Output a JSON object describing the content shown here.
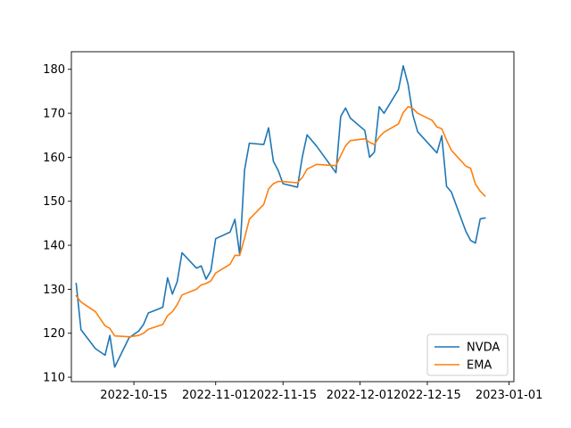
{
  "chart_data": {
    "type": "line",
    "title": "",
    "xlabel": "",
    "ylabel": "",
    "xlim": [
      "2022-10-02",
      "2023-01-02"
    ],
    "ylim": [
      109,
      184
    ],
    "xticks": [
      "2022-10-15",
      "2022-11-01",
      "2022-11-15",
      "2022-12-01",
      "2022-12-15",
      "2023-01-01"
    ],
    "yticks": [
      110,
      120,
      130,
      140,
      150,
      160,
      170,
      180
    ],
    "grid": false,
    "legend": "lower-right",
    "series": [
      {
        "name": "NVDA",
        "color": "#1f77b4",
        "points": [
          [
            "2022-10-03",
            131.3
          ],
          [
            "2022-10-04",
            120.8
          ],
          [
            "2022-10-07",
            116.5
          ],
          [
            "2022-10-09",
            115.0
          ],
          [
            "2022-10-10",
            119.5
          ],
          [
            "2022-10-11",
            112.3
          ],
          [
            "2022-10-14",
            119.0
          ],
          [
            "2022-10-16",
            120.5
          ],
          [
            "2022-10-17",
            122.0
          ],
          [
            "2022-10-18",
            124.6
          ],
          [
            "2022-10-21",
            125.9
          ],
          [
            "2022-10-22",
            132.6
          ],
          [
            "2022-10-23",
            128.9
          ],
          [
            "2022-10-24",
            131.7
          ],
          [
            "2022-10-25",
            138.3
          ],
          [
            "2022-10-28",
            134.8
          ],
          [
            "2022-10-29",
            135.3
          ],
          [
            "2022-10-30",
            132.3
          ],
          [
            "2022-10-31",
            134.2
          ],
          [
            "2022-11-01",
            141.5
          ],
          [
            "2022-11-04",
            143.0
          ],
          [
            "2022-11-05",
            145.9
          ],
          [
            "2022-11-06",
            137.8
          ],
          [
            "2022-11-07",
            157.1
          ],
          [
            "2022-11-08",
            163.2
          ],
          [
            "2022-11-11",
            162.9
          ],
          [
            "2022-11-12",
            166.7
          ],
          [
            "2022-11-13",
            159.1
          ],
          [
            "2022-11-14",
            157.0
          ],
          [
            "2022-11-15",
            154.0
          ],
          [
            "2022-11-18",
            153.2
          ],
          [
            "2022-11-19",
            160.0
          ],
          [
            "2022-11-20",
            165.1
          ],
          [
            "2022-11-22",
            162.5
          ],
          [
            "2022-11-26",
            156.5
          ],
          [
            "2022-11-27",
            169.3
          ],
          [
            "2022-11-28",
            171.2
          ],
          [
            "2022-11-29",
            168.9
          ],
          [
            "2022-12-02",
            166.1
          ],
          [
            "2022-12-03",
            160.0
          ],
          [
            "2022-12-04",
            161.2
          ],
          [
            "2022-12-05",
            171.5
          ],
          [
            "2022-12-06",
            170.0
          ],
          [
            "2022-12-09",
            175.4
          ],
          [
            "2022-12-10",
            180.8
          ],
          [
            "2022-12-11",
            176.6
          ],
          [
            "2022-12-12",
            169.6
          ],
          [
            "2022-12-13",
            165.8
          ],
          [
            "2022-12-16",
            162.2
          ],
          [
            "2022-12-17",
            161.0
          ],
          [
            "2022-12-18",
            164.9
          ],
          [
            "2022-12-19",
            153.4
          ],
          [
            "2022-12-20",
            152.1
          ],
          [
            "2022-12-23",
            143.2
          ],
          [
            "2022-12-24",
            141.1
          ],
          [
            "2022-12-25",
            140.5
          ],
          [
            "2022-12-26",
            146.0
          ],
          [
            "2022-12-27",
            146.2
          ]
        ]
      },
      {
        "name": "EMA",
        "color": "#ff7f0e",
        "points": [
          [
            "2022-10-03",
            128.5
          ],
          [
            "2022-10-04",
            127.1
          ],
          [
            "2022-10-07",
            124.9
          ],
          [
            "2022-10-09",
            121.7
          ],
          [
            "2022-10-10",
            121.1
          ],
          [
            "2022-10-11",
            119.4
          ],
          [
            "2022-10-14",
            119.2
          ],
          [
            "2022-10-16",
            119.5
          ],
          [
            "2022-10-17",
            120.0
          ],
          [
            "2022-10-18",
            120.9
          ],
          [
            "2022-10-21",
            122.0
          ],
          [
            "2022-10-22",
            124.0
          ],
          [
            "2022-10-23",
            124.9
          ],
          [
            "2022-10-24",
            126.5
          ],
          [
            "2022-10-25",
            128.7
          ],
          [
            "2022-10-28",
            130.0
          ],
          [
            "2022-10-29",
            131.0
          ],
          [
            "2022-10-30",
            131.3
          ],
          [
            "2022-10-31",
            131.9
          ],
          [
            "2022-11-01",
            133.7
          ],
          [
            "2022-11-04",
            135.7
          ],
          [
            "2022-11-05",
            137.7
          ],
          [
            "2022-11-06",
            137.7
          ],
          [
            "2022-11-07",
            141.6
          ],
          [
            "2022-11-08",
            145.9
          ],
          [
            "2022-11-11",
            149.3
          ],
          [
            "2022-11-12",
            152.8
          ],
          [
            "2022-11-13",
            154.0
          ],
          [
            "2022-11-14",
            154.5
          ],
          [
            "2022-11-15",
            154.5
          ],
          [
            "2022-11-18",
            154.2
          ],
          [
            "2022-11-19",
            155.4
          ],
          [
            "2022-11-20",
            157.3
          ],
          [
            "2022-11-22",
            158.4
          ],
          [
            "2022-11-26",
            158.1
          ],
          [
            "2022-11-27",
            160.4
          ],
          [
            "2022-11-28",
            162.6
          ],
          [
            "2022-11-29",
            163.8
          ],
          [
            "2022-12-02",
            164.2
          ],
          [
            "2022-12-03",
            163.4
          ],
          [
            "2022-12-04",
            162.9
          ],
          [
            "2022-12-05",
            164.6
          ],
          [
            "2022-12-06",
            165.7
          ],
          [
            "2022-12-09",
            167.6
          ],
          [
            "2022-12-10",
            170.2
          ],
          [
            "2022-12-11",
            171.5
          ],
          [
            "2022-12-12",
            171.1
          ],
          [
            "2022-12-13",
            170.0
          ],
          [
            "2022-12-16",
            168.4
          ],
          [
            "2022-12-17",
            166.9
          ],
          [
            "2022-12-18",
            166.5
          ],
          [
            "2022-12-19",
            163.9
          ],
          [
            "2022-12-20",
            161.6
          ],
          [
            "2022-12-23",
            158.0
          ],
          [
            "2022-12-24",
            157.5
          ],
          [
            "2022-12-25",
            153.9
          ],
          [
            "2022-12-26",
            152.3
          ],
          [
            "2022-12-27",
            151.2
          ]
        ]
      }
    ]
  }
}
